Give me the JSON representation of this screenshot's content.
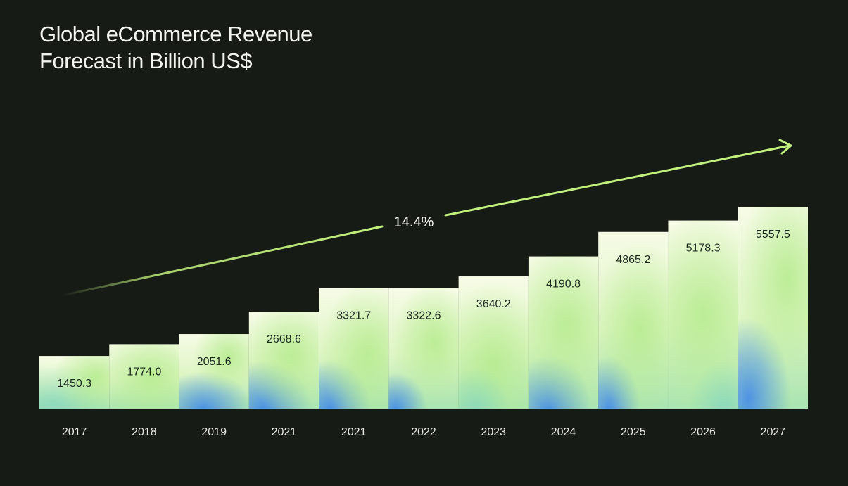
{
  "chart_data": {
    "type": "bar",
    "title": "Global eCommerce Revenue Forecast in Billion US$",
    "title_lines": [
      "Global eCommerce Revenue",
      "Forecast in Billion US$"
    ],
    "categories": [
      "2017",
      "2018",
      "2019",
      "2021",
      "2021",
      "2022",
      "2023",
      "2024",
      "2025",
      "2026",
      "2027"
    ],
    "values": [
      1450.3,
      1774.0,
      2051.6,
      2668.6,
      3321.7,
      3322.6,
      3640.2,
      4190.8,
      4865.2,
      5178.3,
      5557.5
    ],
    "value_labels": [
      "1450.3",
      "1774.0",
      "2051.6",
      "2668.6",
      "3321.7",
      "3322.6",
      "3640.2",
      "4190.8",
      "4865.2",
      "5178.3",
      "5557.5"
    ],
    "xlabel": "",
    "ylabel": "",
    "ylim": [
      0,
      5557.5
    ],
    "grid": false,
    "legend": "none",
    "annotation": {
      "text": "14.4%",
      "kind": "growth-arrow"
    }
  },
  "colors": {
    "background": "#161b16",
    "bar_light": "#f4fbe4",
    "bar_green": "#b9eca1",
    "bar_blue": "#4e92e2",
    "arrow": "#c2f07c",
    "text": "#f2f4ef"
  }
}
